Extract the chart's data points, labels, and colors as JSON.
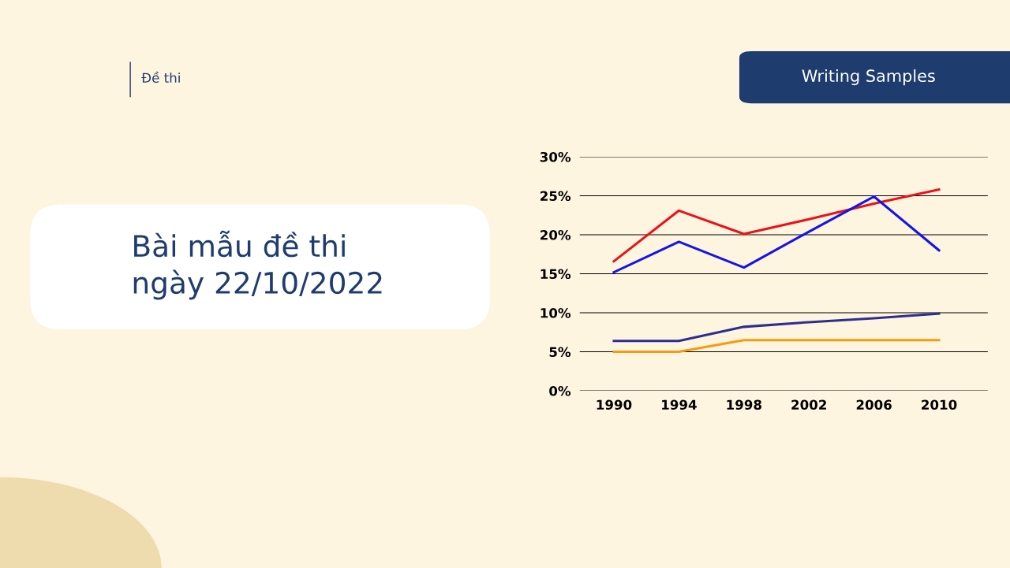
{
  "chart_data": {
    "type": "line",
    "title": "Bài mẫu đề thi\nngày 22/10/2022",
    "annotations": [
      "Đề thi",
      "Writing Samples"
    ],
    "x": [
      1990,
      1994,
      1998,
      2002,
      2006,
      2010
    ],
    "series": [
      {
        "color": "#e8131b",
        "values": [
          16.6,
          23.1,
          20.1,
          22.0,
          24.0,
          25.8
        ]
      },
      {
        "color": "#1414e6",
        "values": [
          15.2,
          19.1,
          15.8,
          20.4,
          24.9,
          18.0
        ]
      },
      {
        "color": "#2e2e8f",
        "values": [
          6.4,
          6.4,
          8.2,
          8.8,
          9.3,
          9.9
        ]
      },
      {
        "color": "#f39c12",
        "values": [
          5.0,
          5.0,
          6.5,
          6.5,
          6.5,
          6.5
        ]
      }
    ],
    "xlim": [
      1987.9,
      2013
    ],
    "xticks": [
      1990,
      1994,
      1998,
      2002,
      2006,
      2010
    ],
    "ylim": [
      0,
      30
    ],
    "yticks": [
      {
        "value": 0,
        "label": "0%"
      },
      {
        "value": 5,
        "label": "5%"
      },
      {
        "value": 10,
        "label": "10%"
      },
      {
        "value": 15,
        "label": "15%"
      },
      {
        "value": 20,
        "label": "20%"
      },
      {
        "value": 25,
        "label": "25%"
      },
      {
        "value": 30,
        "label": "30%"
      }
    ],
    "grid": "y",
    "marker": "none",
    "line_style": "solid"
  }
}
